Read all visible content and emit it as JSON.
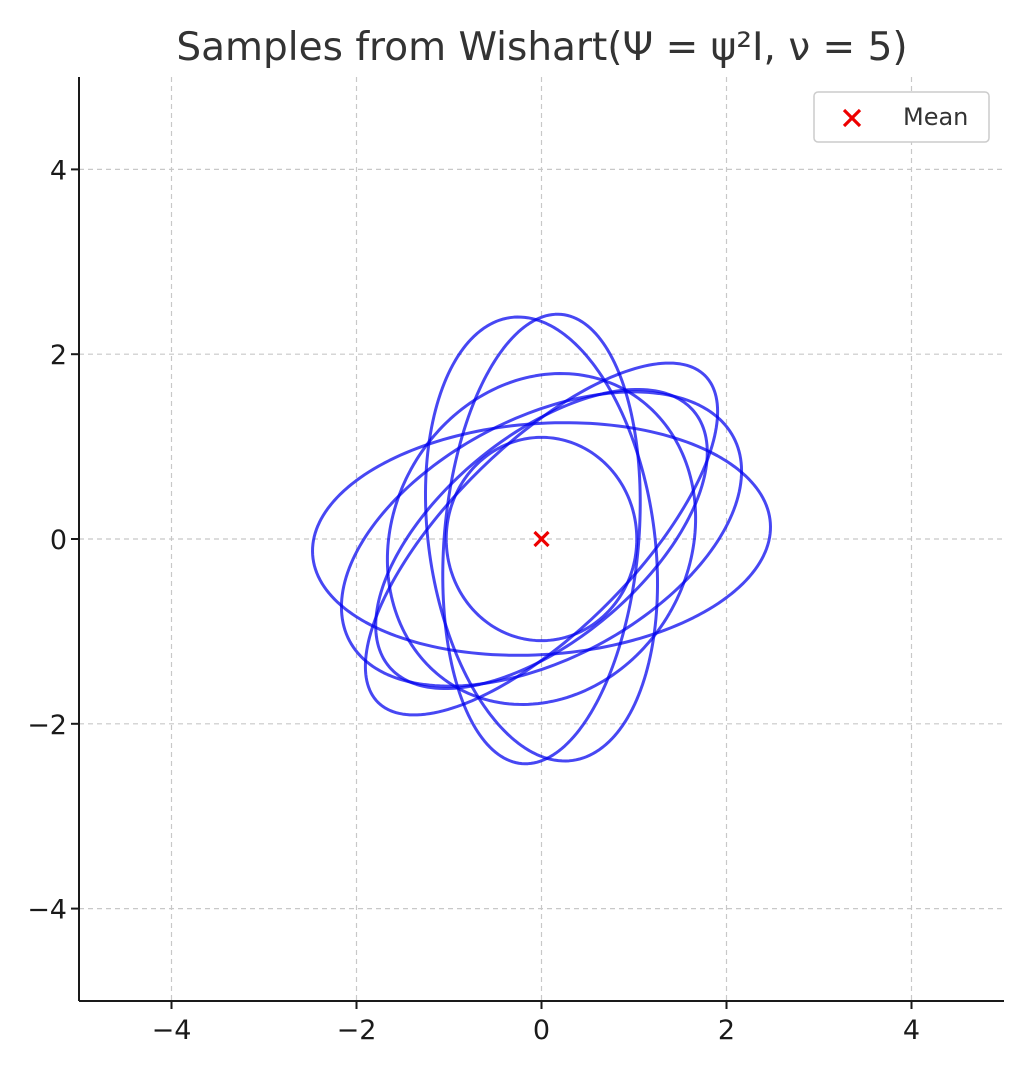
{
  "chart_data": {
    "type": "line",
    "title": "Samples from Wishart(Ψ = ψ²I, ν = 5)",
    "xlabel": "",
    "ylabel": "",
    "xlim": [
      -5,
      5
    ],
    "ylim": [
      -5,
      5
    ],
    "xticks": [
      -4,
      -2,
      0,
      2,
      4
    ],
    "yticks": [
      -4,
      -2,
      0,
      2,
      4
    ],
    "xtick_labels": [
      "−4",
      "−2",
      "0",
      "2",
      "4"
    ],
    "ytick_labels": [
      "−4",
      "−2",
      "0",
      "2",
      "4"
    ],
    "grid": true,
    "legend": {
      "position": "top-right",
      "entries": [
        "Mean"
      ]
    },
    "series_color": "#0000ee",
    "mean_color": "#ee0000",
    "mean": {
      "x": 0,
      "y": 0,
      "label": "Mean"
    },
    "ellipses": [
      {
        "center": [
          0,
          0
        ],
        "semi_axes": [
          1.05,
          2.44
        ],
        "rotation_deg": -5
      },
      {
        "center": [
          0,
          0
        ],
        "semi_axes": [
          1.22,
          2.42
        ],
        "rotation_deg": 8
      },
      {
        "center": [
          0,
          0
        ],
        "semi_axes": [
          1.0,
          2.5
        ],
        "rotation_deg": -45
      },
      {
        "center": [
          0,
          0
        ],
        "semi_axes": [
          1.3,
          2.35
        ],
        "rotation_deg": -62
      },
      {
        "center": [
          0,
          0
        ],
        "semi_axes": [
          1.25,
          2.48
        ],
        "rotation_deg": -86
      },
      {
        "center": [
          0,
          0
        ],
        "semi_axes": [
          1.1,
          2.15
        ],
        "rotation_deg": -50
      },
      {
        "center": [
          0,
          0
        ],
        "semi_axes": [
          1.6,
          1.85
        ],
        "rotation_deg": -30
      },
      {
        "center": [
          0,
          0
        ],
        "semi_axes": [
          1.03,
          1.1
        ],
        "rotation_deg": 0
      }
    ]
  }
}
